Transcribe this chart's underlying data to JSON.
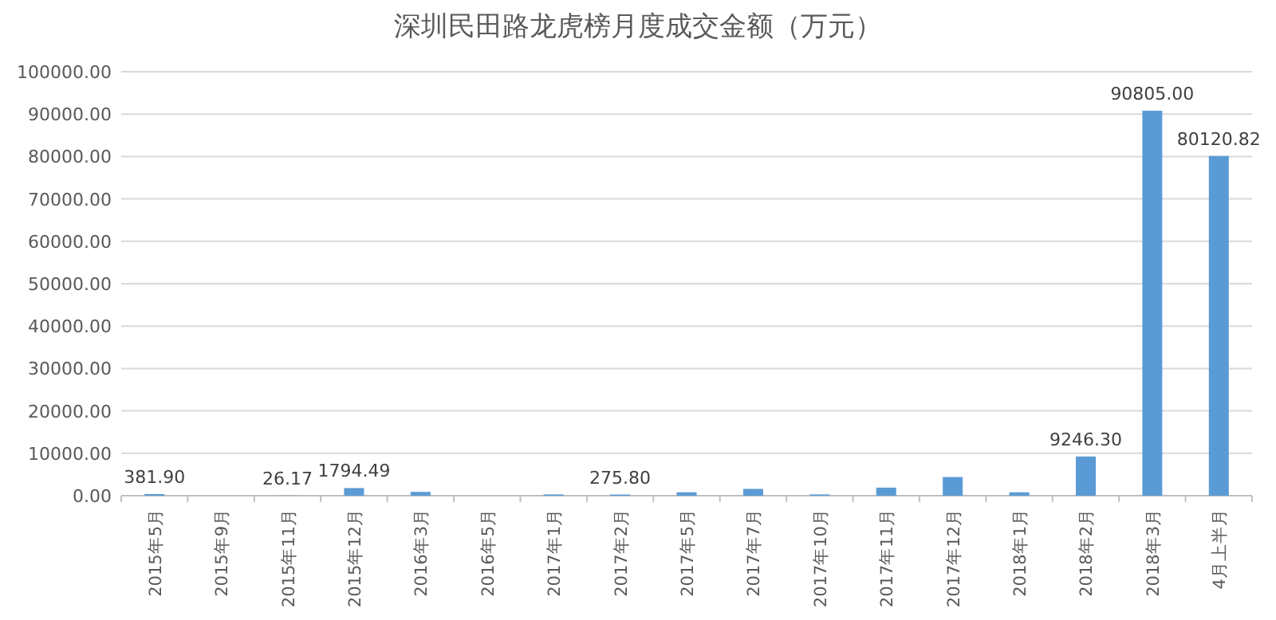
{
  "chart_data": {
    "type": "bar",
    "title": "深圳民田路龙虎榜月度成交金额（万元）",
    "categories": [
      "2015年5月",
      "2015年9月",
      "2015年11月",
      "2015年12月",
      "2016年3月",
      "2016年5月",
      "2017年1月",
      "2017年2月",
      "2017年5月",
      "2017年7月",
      "2017年10月",
      "2017年11月",
      "2017年12月",
      "2018年1月",
      "2018年2月",
      "2018年3月",
      "4月上半月"
    ],
    "values": [
      381.9,
      0,
      26.17,
      1794.49,
      900,
      0,
      300,
      275.8,
      800,
      1600,
      300,
      1900,
      4400,
      800,
      9246.3,
      90805.0,
      80120.82
    ],
    "value_labels": [
      "381.90",
      null,
      "26.17",
      "1794.49",
      null,
      null,
      null,
      "275.80",
      null,
      null,
      null,
      null,
      null,
      null,
      "9246.30",
      "90805.00",
      "80120.82"
    ],
    "color": "#5b9bd5",
    "ylim": [
      0,
      100000
    ],
    "yticks": [
      {
        "value": 0,
        "label": "0.00"
      },
      {
        "value": 10000,
        "label": "10000.00"
      },
      {
        "value": 20000,
        "label": "20000.00"
      },
      {
        "value": 30000,
        "label": "30000.00"
      },
      {
        "value": 40000,
        "label": "40000.00"
      },
      {
        "value": 50000,
        "label": "50000.00"
      },
      {
        "value": 60000,
        "label": "60000.00"
      },
      {
        "value": 70000,
        "label": "70000.00"
      },
      {
        "value": 80000,
        "label": "80000.00"
      },
      {
        "value": 90000,
        "label": "90000.00"
      },
      {
        "value": 100000,
        "label": "100000.00"
      }
    ],
    "grid": "y"
  }
}
